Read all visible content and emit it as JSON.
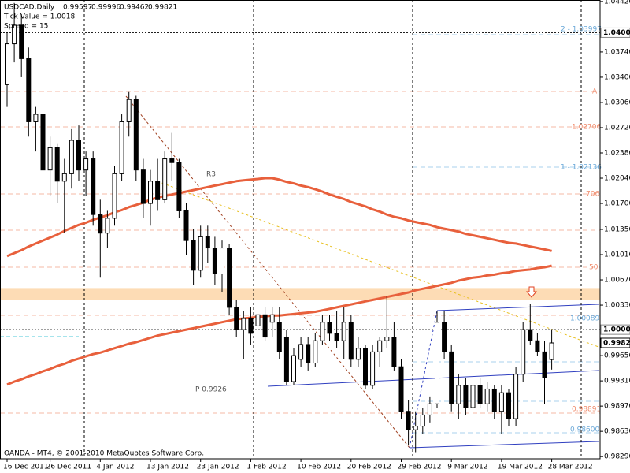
{
  "chart_data": {
    "type": "candlestick",
    "header": {
      "symbol": "USDCAD,Daily",
      "tick_value": "Tick Value = 1.0018",
      "spread": "Spread = 15"
    },
    "footer": "OANDA - MT4, © 2001-2010 MetaQuotes Software Corp.",
    "annotations": [
      "R3",
      "P 0.9926",
      "2 - 1.03997",
      "A",
      "1.02706",
      "1 - 1.02136",
      "706",
      "50",
      "1.00089",
      "0.98891",
      "0.98600"
    ],
    "categories": [
      "16 Dec 2011",
      null,
      null,
      null,
      null,
      null,
      "26 Dec 2011",
      null,
      null,
      null,
      null,
      null,
      null,
      "4 Jan 2012",
      null,
      null,
      null,
      null,
      null,
      null,
      "13 Jan 2012",
      null,
      null,
      null,
      null,
      null,
      null,
      "23 Jan 2012",
      null,
      null,
      null,
      null,
      null,
      null,
      "1 Feb 2012",
      null,
      null,
      null,
      null,
      null,
      null,
      "10 Feb 2012",
      null,
      null,
      null,
      null,
      null,
      null,
      "20 Feb 2012",
      null,
      null,
      null,
      null,
      null,
      null,
      "29 Feb 2012",
      null,
      null,
      null,
      null,
      null,
      null,
      "9 Mar 2012",
      null,
      null,
      null,
      null,
      null,
      null,
      "19 Mar 2012",
      null,
      null,
      null,
      null,
      null,
      null,
      "28 Mar 2012"
    ],
    "open": [
      1.033,
      1.0385,
      1.041,
      1.0365,
      1.028,
      1.029,
      1.0215,
      1.0245,
      1.02,
      1.021,
      1.0255,
      1.0215,
      1.023,
      1.0155,
      1.013,
      1.015,
      1.021,
      1.028,
      1.031,
      1.0215,
      1.017,
      1.02,
      1.0175,
      1.023,
      1.0225,
      1.016,
      1.012,
      1.008,
      1.0125,
      1.011,
      1.0075,
      1.011,
      1.003,
      1.0,
      1.0015,
      1.0005,
      1.002,
      1.001,
      1.001,
      0.999,
      0.993,
      0.996,
      0.998,
      0.9955,
      0.9985,
      1.001,
      0.9995,
      0.9985,
      1.001,
      0.996,
      0.9975,
      0.9925,
      0.997,
      0.9985,
      0.999,
      0.995,
      0.989,
      0.9865,
      0.987,
      0.9885,
      0.99,
      1.001,
      0.997,
      0.99,
      0.9925,
      0.9895,
      0.9925,
      0.99,
      0.992,
      0.989,
      0.9915,
      0.988,
      0.994,
      1.0,
      0.9985,
      0.997,
      0.99597
    ],
    "high": [
      1.04,
      1.044,
      1.0425,
      1.038,
      1.03,
      1.0295,
      1.026,
      1.025,
      1.023,
      1.027,
      1.0275,
      1.024,
      1.024,
      1.0175,
      1.016,
      1.022,
      1.029,
      1.032,
      1.0315,
      1.023,
      1.0215,
      1.023,
      1.024,
      1.0265,
      1.023,
      1.017,
      1.0135,
      1.014,
      1.014,
      1.0125,
      1.012,
      1.0115,
      1.004,
      1.0025,
      1.003,
      1.0025,
      1.003,
      1.003,
      1.003,
      1.0,
      0.9975,
      0.999,
      0.999,
      0.9995,
      1.002,
      1.002,
      1.0025,
      1.003,
      1.002,
      0.999,
      0.998,
      0.998,
      0.999,
      1.0045,
      1.001,
      0.996,
      0.9905,
      0.989,
      0.9895,
      0.991,
      1.0025,
      1.0025,
      0.998,
      0.994,
      0.9935,
      0.9935,
      0.9935,
      0.993,
      0.9925,
      0.9925,
      0.992,
      0.995,
      1.001,
      1.0035,
      0.9995,
      0.9985,
      0.99996
    ],
    "low": [
      1.03,
      1.036,
      1.034,
      1.026,
      1.024,
      1.02,
      1.018,
      1.017,
      1.013,
      1.019,
      1.02,
      1.018,
      1.014,
      1.007,
      1.011,
      1.014,
      1.02,
      1.026,
      1.02,
      1.015,
      1.014,
      1.016,
      1.017,
      1.02,
      1.015,
      1.01,
      1.006,
      1.007,
      1.009,
      1.006,
      1.005,
      1.002,
      0.999,
      0.996,
      0.998,
      0.999,
      0.9985,
      0.999,
      0.996,
      0.9925,
      0.9925,
      0.995,
      0.9945,
      0.995,
      0.998,
      0.9985,
      0.9975,
      0.996,
      0.995,
      0.995,
      0.992,
      0.992,
      0.995,
      0.9975,
      0.9945,
      0.988,
      0.9845,
      0.9835,
      0.986,
      0.9875,
      0.9895,
      0.996,
      0.989,
      0.988,
      0.9885,
      0.989,
      0.9895,
      0.989,
      0.988,
      0.986,
      0.987,
      0.987,
      0.993,
      0.998,
      0.9965,
      0.99,
      0.99462
    ],
    "close": [
      1.0385,
      1.041,
      1.0365,
      1.028,
      1.029,
      1.0215,
      1.0245,
      1.02,
      1.021,
      1.0255,
      1.0215,
      1.023,
      1.0155,
      1.013,
      1.015,
      1.021,
      1.028,
      1.031,
      1.0215,
      1.017,
      1.02,
      1.0175,
      1.023,
      1.0225,
      1.016,
      1.012,
      1.008,
      1.0125,
      1.011,
      1.0075,
      1.011,
      1.003,
      1.0,
      1.0015,
      0.9995,
      1.002,
      0.999,
      1.002,
      0.997,
      0.993,
      0.9965,
      0.998,
      0.9955,
      0.9985,
      1.001,
      0.9995,
      0.9985,
      1.001,
      0.996,
      0.9975,
      0.9925,
      0.997,
      0.9985,
      0.999,
      0.995,
      0.989,
      0.9865,
      0.987,
      0.9885,
      0.99,
      1.001,
      0.997,
      0.99,
      0.9925,
      0.9895,
      0.9925,
      0.99,
      0.992,
      0.989,
      0.9915,
      0.988,
      0.994,
      1.0,
      0.9985,
      0.997,
      0.9935,
      0.99821
    ],
    "bull_color": "#ffffff",
    "bear_color": "#000000",
    "edge_color": "#000000",
    "lines": [
      {
        "color": "#e8603c",
        "values": [
          1.0099,
          1.0103,
          1.0107,
          1.0112,
          1.0116,
          1.012,
          1.0124,
          1.0128,
          1.0133,
          1.0137,
          1.0141,
          1.0144,
          1.0148,
          1.0151,
          1.0154,
          1.0158,
          1.0161,
          1.0165,
          1.0168,
          1.0171,
          1.0175,
          1.0178,
          1.018,
          1.0182,
          1.0184,
          1.0186,
          1.0188,
          1.019,
          1.0192,
          1.0194,
          1.0196,
          1.0198,
          1.02,
          1.0201,
          1.0202,
          1.0203,
          1.0204,
          1.0204,
          1.0202,
          1.0199,
          1.0197,
          1.0194,
          1.0192,
          1.0189,
          1.0186,
          1.0182,
          1.0179,
          1.0176,
          1.0172,
          1.0169,
          1.0166,
          1.0162,
          1.0159,
          1.0155,
          1.0152,
          1.015,
          1.0147,
          1.0145,
          1.0143,
          1.0141,
          1.0138,
          1.0136,
          1.0134,
          1.0132,
          1.0129,
          1.0127,
          1.0125,
          1.0123,
          1.0121,
          1.0119,
          1.0117,
          1.0116,
          1.0114,
          1.0112,
          1.011,
          1.0108,
          1.0106
        ]
      },
      {
        "color": "#e8603c",
        "values": [
          0.9926,
          0.993,
          0.9933,
          0.9937,
          0.994,
          0.9944,
          0.9947,
          0.9951,
          0.9954,
          0.9958,
          0.9961,
          0.9964,
          0.9967,
          0.9969,
          0.9972,
          0.9975,
          0.9978,
          0.9981,
          0.9983,
          0.9986,
          0.9989,
          0.9992,
          0.9994,
          0.9996,
          0.9998,
          1.0,
          1.0002,
          1.0004,
          1.0006,
          1.0008,
          1.001,
          1.0012,
          1.0014,
          1.0015,
          1.0016,
          1.0017,
          1.0018,
          1.0019,
          1.0019,
          1.002,
          1.0021,
          1.0022,
          1.0023,
          1.0024,
          1.0026,
          1.0028,
          1.003,
          1.0032,
          1.0034,
          1.0036,
          1.0038,
          1.004,
          1.0042,
          1.0044,
          1.0046,
          1.0048,
          1.005,
          1.0053,
          1.0055,
          1.0057,
          1.0059,
          1.0061,
          1.0063,
          1.0066,
          1.0068,
          1.007,
          1.0071,
          1.0073,
          1.0074,
          1.0076,
          1.0077,
          1.0079,
          1.008,
          1.0081,
          1.0083,
          1.0084,
          1.0086
        ]
      }
    ],
    "zone": {
      "from": 1.004,
      "to": 1.0056,
      "color": "#fddcb5"
    },
    "price_markers": [
      {
        "value": 1.04,
        "label": "1.04000"
      },
      {
        "value": 1.0,
        "label": "1.00000"
      }
    ],
    "ylim": [
      0.9826,
      1.0444
    ],
    "yticks": [
      {
        "value": 1.0442,
        "label": "1.04420"
      },
      {
        "value": 1.0374,
        "label": "1.03740"
      },
      {
        "value": 1.034,
        "label": "1.03400"
      },
      {
        "value": 1.0306,
        "label": "1.03060"
      },
      {
        "value": 1.0272,
        "label": "1.02720"
      },
      {
        "value": 1.0238,
        "label": "1.02380"
      },
      {
        "value": 1.0204,
        "label": "1.02040"
      },
      {
        "value": 1.017,
        "label": "1.01700"
      },
      {
        "value": 1.0135,
        "label": "1.01350"
      },
      {
        "value": 1.0101,
        "label": "1.01010"
      },
      {
        "value": 1.0067,
        "label": "1.00670"
      },
      {
        "value": 1.0033,
        "label": "1.00330"
      },
      {
        "value": 0.9965,
        "label": "0.99650"
      },
      {
        "value": 0.9931,
        "label": "0.99310"
      },
      {
        "value": 0.9897,
        "label": "0.98970"
      },
      {
        "value": 0.9863,
        "label": "0.98630"
      },
      {
        "value": 0.9829,
        "label": "0.98290"
      }
    ],
    "grid": false
  }
}
